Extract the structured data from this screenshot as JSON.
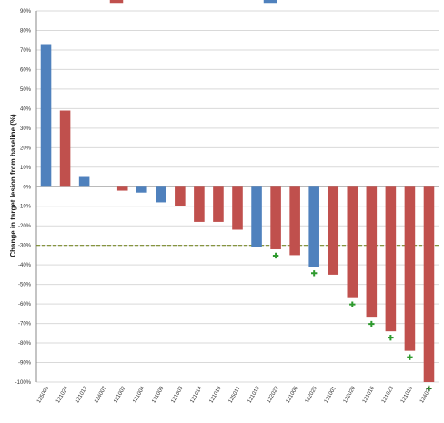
{
  "chart_data": {
    "type": "bar",
    "ylabel": "Change in target lesion from baseline (%)",
    "ylim": [
      -100,
      90
    ],
    "y_ticks": [
      "90%",
      "80%",
      "70%",
      "60%",
      "50%",
      "40%",
      "30%",
      "20%",
      "10%",
      "0%",
      "-10%",
      "-20%",
      "-30%",
      "-40%",
      "-50%",
      "-60%",
      "-70%",
      "-80%",
      "-90%",
      "-100%"
    ],
    "grid": true,
    "reference_line": {
      "value": -30,
      "style": "dashed",
      "color": "#7a8a2a"
    },
    "categories": [
      "125005",
      "121024",
      "121012",
      "124007",
      "121002",
      "121004",
      "121009",
      "121003",
      "121014",
      "121019",
      "125017",
      "121018",
      "122022",
      "121006",
      "122025",
      "121001",
      "122020",
      "121016",
      "121023",
      "121015",
      "124021"
    ],
    "values": [
      73,
      39,
      5,
      0,
      -2,
      -3,
      -8,
      -10,
      -18,
      -18,
      -22,
      -31,
      -32,
      -35,
      -41,
      -45,
      -57,
      -67,
      -74,
      -84,
      -100
    ],
    "bar_colors": [
      "blue",
      "red",
      "blue",
      "red",
      "red",
      "blue",
      "blue",
      "red",
      "red",
      "red",
      "red",
      "blue",
      "red",
      "red",
      "blue",
      "red",
      "red",
      "red",
      "red",
      "red",
      "red"
    ],
    "markers": [
      "122022",
      "122025",
      "122020",
      "121016",
      "121023",
      "121015",
      "124021"
    ],
    "colors": {
      "red": "#c0504d",
      "blue": "#4f81bd",
      "marker": "#2e9a2e",
      "grid": "#d9d9d9",
      "axis": "#888888"
    },
    "legend": {
      "placement": "top",
      "entries": [
        {
          "color": "red",
          "label": ""
        },
        {
          "color": "blue",
          "label": ""
        }
      ]
    }
  }
}
